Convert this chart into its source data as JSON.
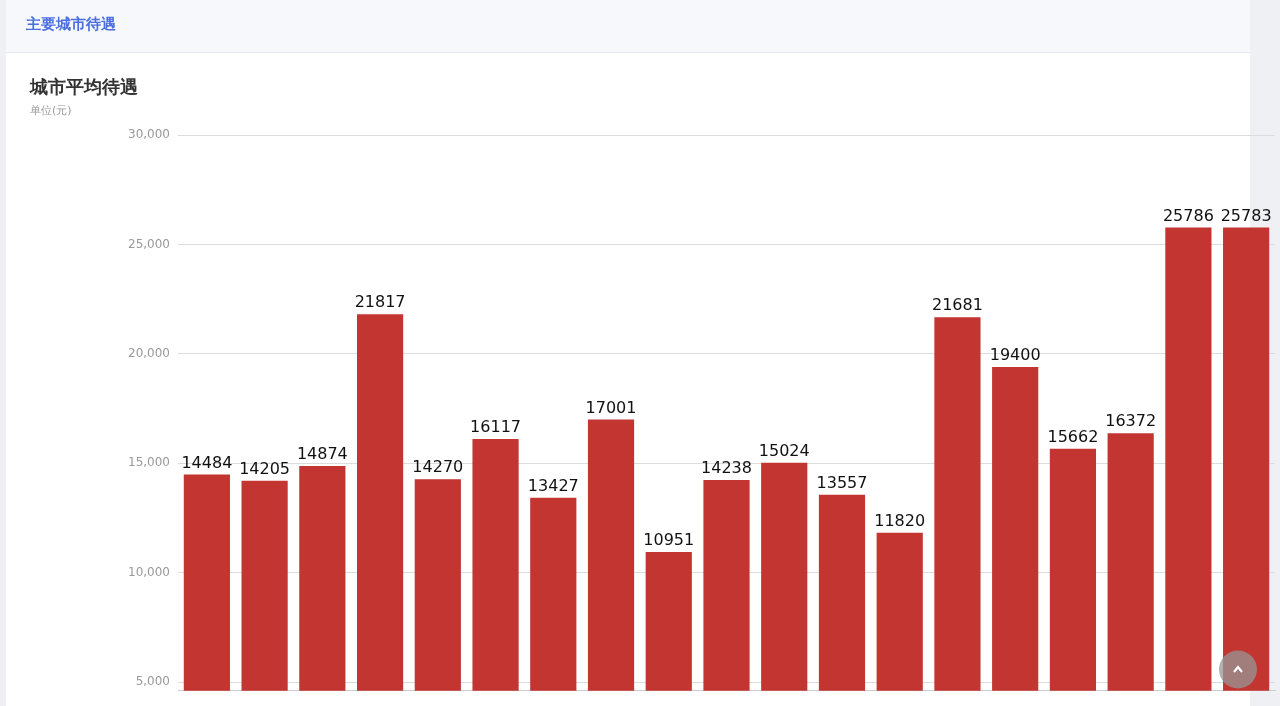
{
  "chart_data": {
    "type": "bar",
    "title": "城市平均待遇",
    "subtitle": "单位(元)",
    "annotations": [
      "主要城市待遇"
    ],
    "categories": [
      null,
      null,
      null,
      null,
      null,
      null,
      null,
      null,
      null,
      null,
      null,
      null,
      null,
      null,
      null,
      null,
      null,
      null,
      null
    ],
    "values": [
      14484,
      14205,
      14874,
      21817,
      14270,
      16117,
      13427,
      17001,
      10951,
      14238,
      15024,
      13557,
      11820,
      21681,
      19400,
      15662,
      16372,
      25786,
      25783
    ],
    "color": "#c23531",
    "ylim": [
      4600,
      30000
    ],
    "yticks": [
      {
        "value": 5000,
        "label": "5,000"
      },
      {
        "value": 10000,
        "label": "10,000"
      },
      {
        "value": 15000,
        "label": "15,000"
      },
      {
        "value": 20000,
        "label": "20,000"
      },
      {
        "value": 25000,
        "label": "25,000"
      },
      {
        "value": 30000,
        "label": "30,000"
      }
    ],
    "grid": "y",
    "tick_labels": "y",
    "data_labels": true,
    "legend": false
  }
}
